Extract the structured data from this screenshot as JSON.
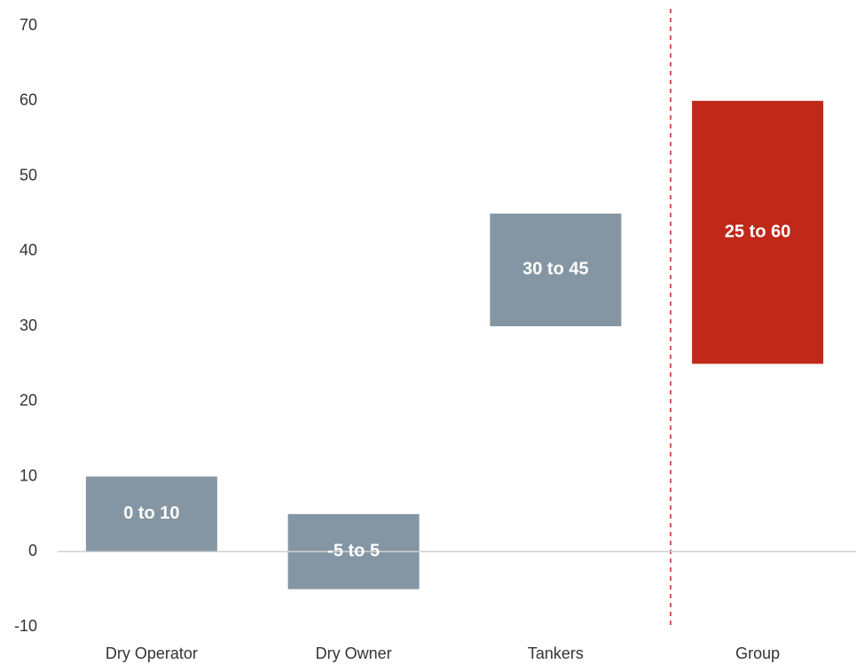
{
  "chart_data": {
    "type": "range_bar",
    "categories": [
      "Dry Operator",
      "Dry Owner",
      "Tankers",
      "Group"
    ],
    "lows": [
      0,
      -5,
      30,
      25
    ],
    "highs": [
      10,
      5,
      45,
      60
    ],
    "value_labels": [
      "0 to 10",
      "-5 to 5",
      "30 to 45",
      "25 to 60"
    ],
    "colors": [
      "#8496a3",
      "#8496a3",
      "#8496a3",
      "#c0281a"
    ],
    "ylim": [
      -10,
      70
    ],
    "yticks": [
      -10,
      0,
      10,
      20,
      30,
      40,
      50,
      60,
      70
    ],
    "grid": false
  }
}
